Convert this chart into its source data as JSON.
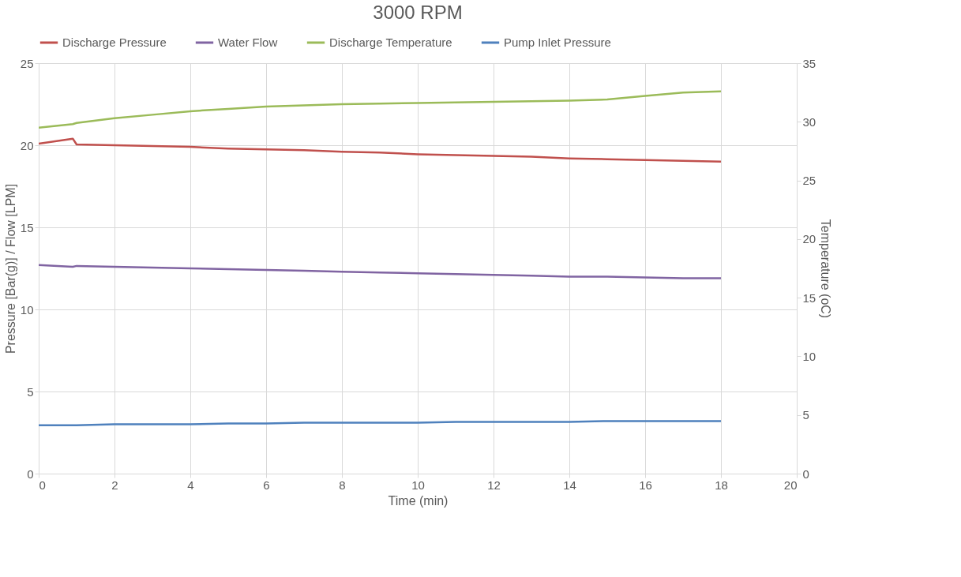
{
  "chart_data": {
    "type": "line",
    "title": "3000 RPM",
    "xlabel": "Time (min)",
    "ylabel": "Pressure [Bar(g)] / Flow [LPM]",
    "y2label": "Temperature (oC)",
    "x": [
      0,
      0.9,
      1,
      2,
      3,
      4,
      5,
      6,
      7,
      8,
      9,
      10,
      11,
      12,
      13,
      14,
      15,
      16,
      17,
      18
    ],
    "series": [
      {
        "name": "Discharge Pressure",
        "color": "#c0504d",
        "values": [
          20.1,
          20.4,
          20.05,
          20.0,
          19.95,
          19.9,
          19.8,
          19.75,
          19.7,
          19.6,
          19.55,
          19.45,
          19.4,
          19.35,
          19.3,
          19.2,
          19.15,
          19.1,
          19.05,
          19.0
        ]
      },
      {
        "name": "Water Flow",
        "color": "#8064a2",
        "values": [
          12.7,
          12.6,
          12.65,
          12.6,
          12.55,
          12.5,
          12.45,
          12.4,
          12.35,
          12.3,
          12.25,
          12.2,
          12.15,
          12.1,
          12.05,
          12.0,
          12.0,
          11.95,
          11.9,
          11.9
        ]
      },
      {
        "name": "Discharge Temperature",
        "color": "#9bbb59",
        "axis": "y2",
        "values": [
          29.5,
          29.8,
          29.9,
          30.3,
          30.6,
          30.9,
          31.1,
          31.3,
          31.4,
          31.5,
          31.55,
          31.6,
          31.65,
          31.7,
          31.75,
          31.8,
          31.9,
          32.2,
          32.5,
          32.6
        ]
      },
      {
        "name": "Pump Inlet Pressure",
        "color": "#4f81bd",
        "values": [
          2.95,
          2.95,
          2.95,
          3.0,
          3.0,
          3.0,
          3.05,
          3.05,
          3.1,
          3.1,
          3.1,
          3.1,
          3.15,
          3.15,
          3.15,
          3.15,
          3.2,
          3.2,
          3.2,
          3.2
        ]
      }
    ],
    "xlim": [
      0,
      20
    ],
    "xticks": [
      0,
      2,
      4,
      6,
      8,
      10,
      12,
      14,
      16,
      18,
      20
    ],
    "ylim": [
      0,
      25
    ],
    "yticks": [
      0,
      5,
      10,
      15,
      20,
      25
    ],
    "y2lim": [
      0,
      35
    ],
    "y2ticks": [
      0,
      5,
      10,
      15,
      20,
      25,
      30,
      35
    ],
    "grid": true,
    "legend": "top",
    "marker": "none",
    "line_style": "solid"
  }
}
